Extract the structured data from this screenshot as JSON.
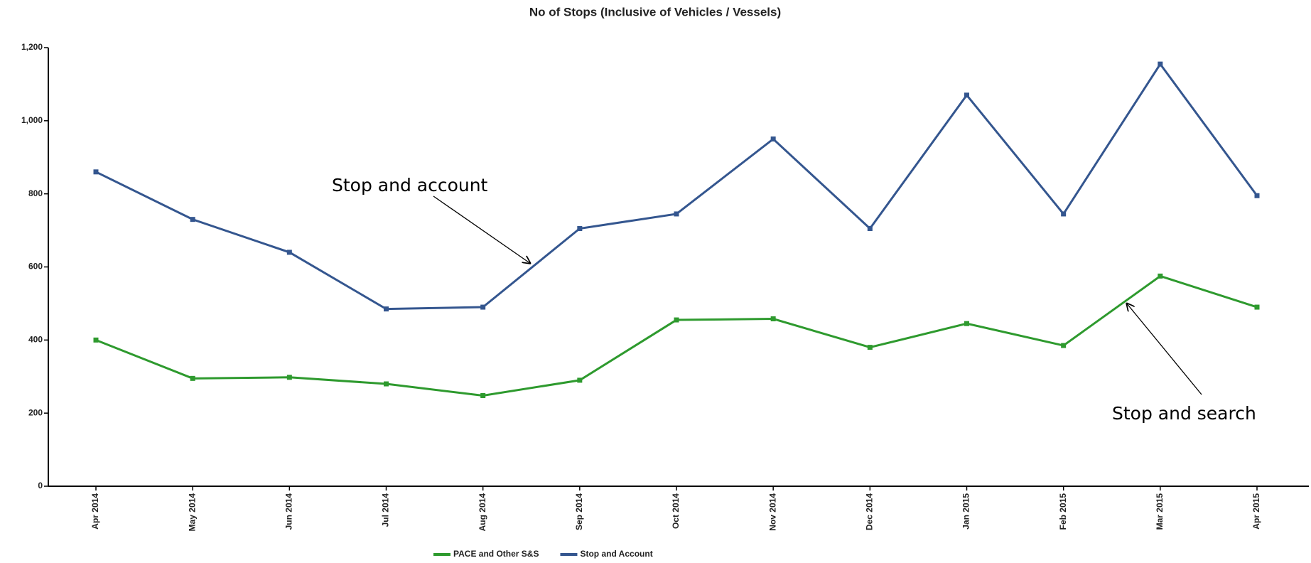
{
  "chart_data": {
    "type": "line",
    "title": "No of Stops (Inclusive of Vehicles / Vessels)",
    "categories": [
      "Apr 2014",
      "May 2014",
      "Jun 2014",
      "Jul 2014",
      "Aug 2014",
      "Sep 2014",
      "Oct 2014",
      "Nov 2014",
      "Dec 2014",
      "Jan 2015",
      "Feb 2015",
      "Mar 2015",
      "Apr 2015"
    ],
    "series": [
      {
        "name": "PACE and Other S&S",
        "color": "#2e9a2e",
        "values": [
          400,
          295,
          298,
          280,
          248,
          290,
          455,
          458,
          380,
          445,
          385,
          575,
          490
        ]
      },
      {
        "name": "Stop and Account",
        "color": "#34568f",
        "values": [
          860,
          730,
          640,
          485,
          490,
          705,
          745,
          950,
          705,
          1070,
          745,
          1155,
          795
        ]
      }
    ],
    "ylim": [
      0,
      1200
    ],
    "yticks": [
      0,
      200,
      400,
      600,
      800,
      {
        "value": 1000,
        "label": "1,000"
      },
      {
        "value": 1200,
        "label": "1,200"
      }
    ],
    "annotations": [
      {
        "text": "Stop and account"
      },
      {
        "text": "Stop and search"
      }
    ]
  }
}
